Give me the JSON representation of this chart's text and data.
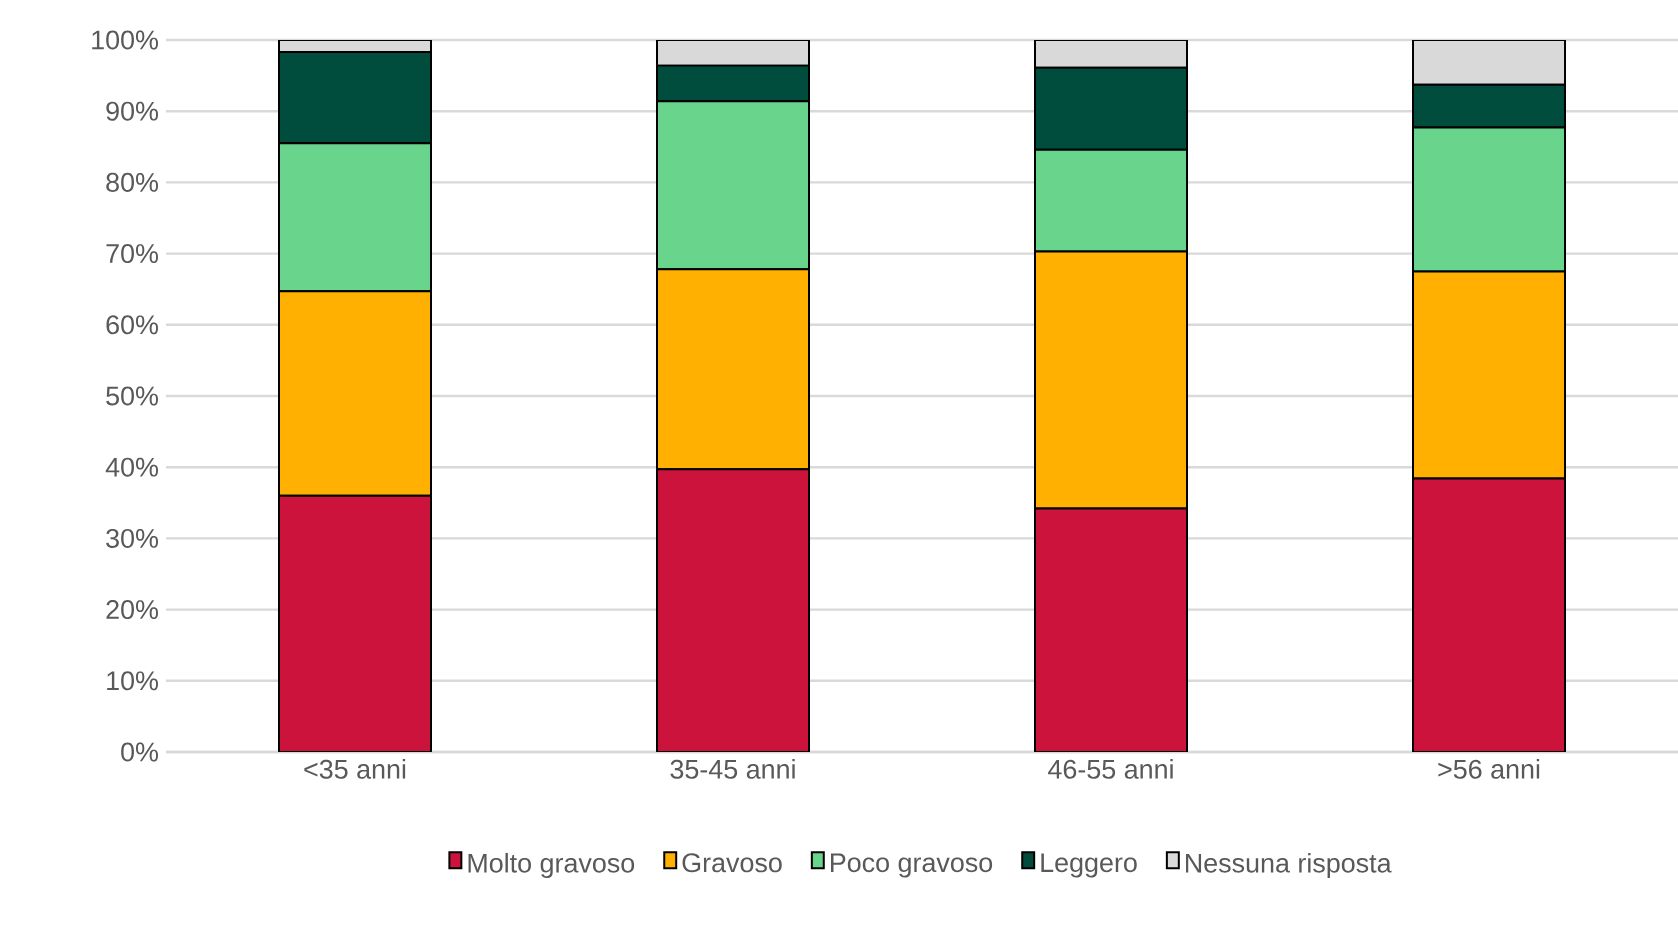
{
  "chart_data": {
    "type": "bar",
    "stacked": true,
    "categories": [
      "<35 anni",
      "35-45 anni",
      "46-55 anni",
      ">56 anni"
    ],
    "series": [
      {
        "name": "Molto gravoso",
        "color": "#cc133c",
        "values": [
          36.0,
          39.7,
          34.2,
          38.4
        ]
      },
      {
        "name": "Gravoso",
        "color": "#ffb000",
        "values": [
          28.7,
          28.1,
          36.1,
          29.1
        ]
      },
      {
        "name": "Poco gravoso",
        "color": "#68d48c",
        "values": [
          20.8,
          23.6,
          14.3,
          20.2
        ]
      },
      {
        "name": "Leggero",
        "color": "#004c3d",
        "values": [
          12.8,
          5.0,
          11.5,
          6.0
        ]
      },
      {
        "name": "Nessuna risposta",
        "color": "#d9d9d9",
        "values": [
          1.7,
          3.6,
          3.9,
          6.3
        ]
      }
    ],
    "ylim": [
      0,
      100
    ],
    "yticks": [
      {
        "value": 0,
        "label": "0%"
      },
      {
        "value": 10,
        "label": "10%"
      },
      {
        "value": 20,
        "label": "20%"
      },
      {
        "value": 30,
        "label": "30%"
      },
      {
        "value": 40,
        "label": "40%"
      },
      {
        "value": 50,
        "label": "50%"
      },
      {
        "value": 60,
        "label": "60%"
      },
      {
        "value": 70,
        "label": "70%"
      },
      {
        "value": 80,
        "label": "80%"
      },
      {
        "value": 90,
        "label": "90%"
      },
      {
        "value": 100,
        "label": "100%"
      }
    ],
    "grid": "y",
    "legend": "bottom"
  }
}
